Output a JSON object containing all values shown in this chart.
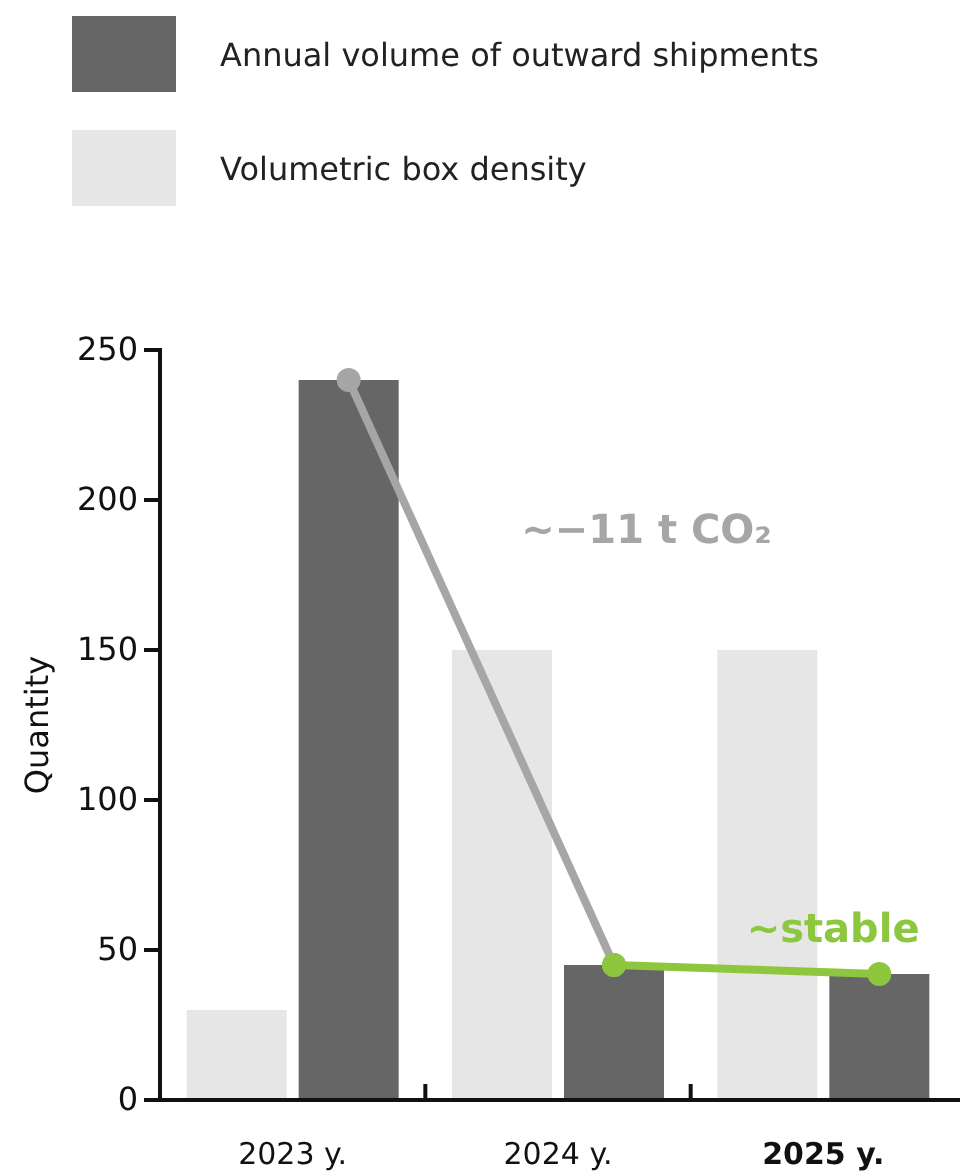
{
  "chart_data": {
    "type": "bar",
    "ylabel": "Quantity",
    "categories": [
      "2023 y.",
      "2024 y.",
      "2025 y."
    ],
    "series": [
      {
        "name": "Volumetric box density",
        "color": "#e6e6e6",
        "values": [
          30,
          150,
          150
        ]
      },
      {
        "name": "Annual volume of outward shipments",
        "color": "#666666",
        "values": [
          240,
          45,
          42
        ]
      },
      {
        "type": "line",
        "color": "#a6a6a6",
        "values": [
          240,
          45,
          null
        ]
      },
      {
        "type": "line",
        "color": "#8dc63f",
        "values": [
          null,
          45,
          42
        ]
      }
    ],
    "annotations": [
      "~−11 t CO₂",
      "~stable"
    ],
    "ylim": [
      0,
      250
    ],
    "yticks": [
      0,
      50,
      100,
      150,
      200,
      250
    ],
    "grid": false,
    "legend": "top left",
    "marker": "circle"
  }
}
